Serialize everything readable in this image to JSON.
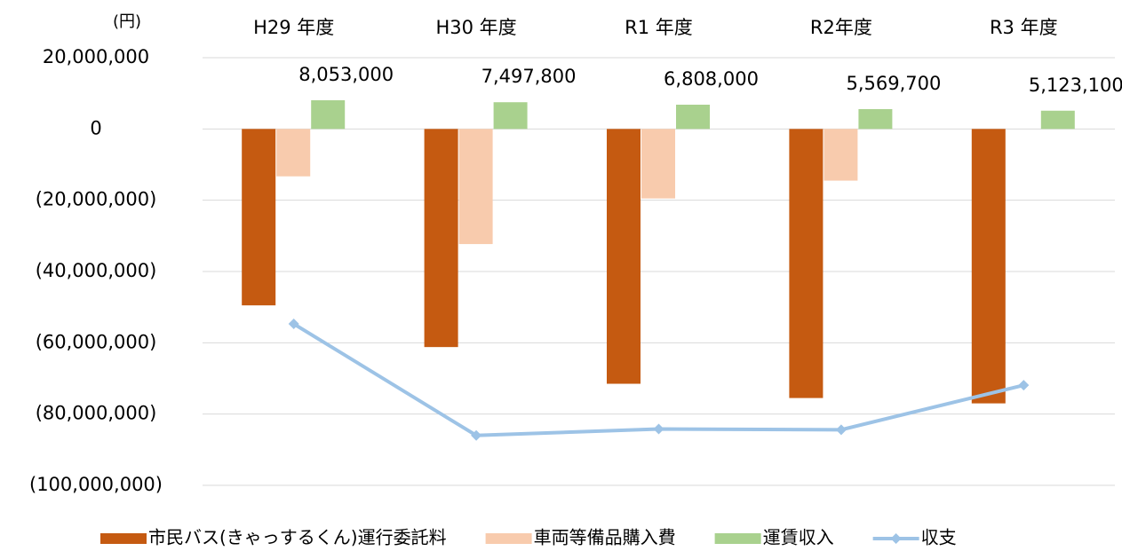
{
  "chart_data": {
    "type": "bar",
    "unit_label": "(円)",
    "categories": [
      "H29 年度",
      "H30 年度",
      "R1 年度",
      "R2年度",
      "R3 年度"
    ],
    "series": [
      {
        "name": "市民バス(きゃっするくん)運行委託料",
        "color": "#c55a11",
        "values": [
          -49500000,
          -61200000,
          -71500000,
          -75500000,
          -77000000
        ]
      },
      {
        "name": "車両等備品購入費",
        "color": "#f8cbad",
        "values": [
          -13300000,
          -32300000,
          -19500000,
          -14500000,
          null
        ]
      },
      {
        "name": "運賃収入",
        "color": "#a9d18e",
        "values": [
          8053000,
          7497800,
          6808000,
          5569700,
          5123100
        ],
        "value_labels": [
          "8,053,000",
          "7,497,800",
          "6,808,000",
          "5,569,700",
          "5,123,100"
        ]
      },
      {
        "name": "収支",
        "type": "line",
        "color": "#9dc3e6",
        "values": [
          -54700000,
          -86000000,
          -84200000,
          -84400000,
          -71900000
        ]
      }
    ],
    "ylim": [
      -100000000,
      20000000
    ],
    "yticks": [
      {
        "value": -100000000,
        "label": "(100,000,000)"
      },
      {
        "value": -80000000,
        "label": "(80,000,000)"
      },
      {
        "value": -60000000,
        "label": "(60,000,000)"
      },
      {
        "value": -40000000,
        "label": "(40,000,000)"
      },
      {
        "value": -20000000,
        "label": "(20,000,000)"
      },
      0,
      {
        "value": 20000000,
        "label": "20,000,000"
      }
    ],
    "negative_tick_color": "#ff0000",
    "grid": true,
    "legend": "bottom"
  }
}
